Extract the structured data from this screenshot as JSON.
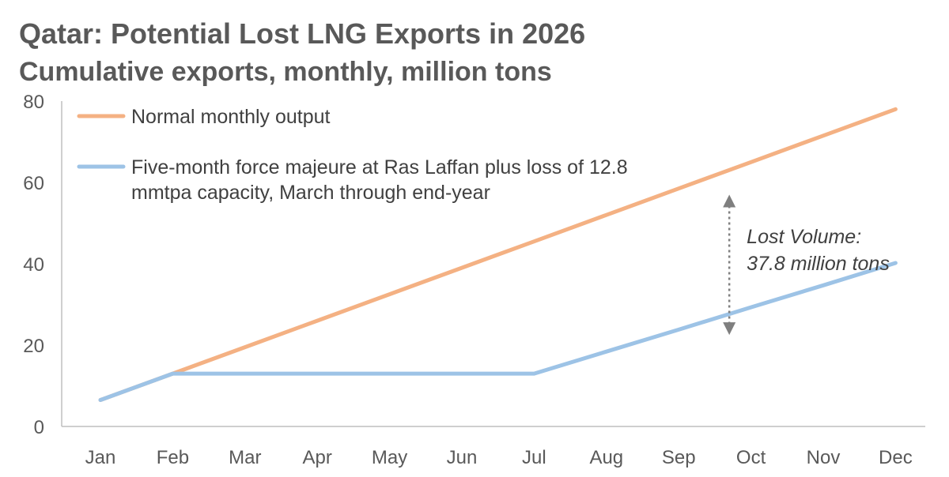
{
  "chart_data": {
    "type": "line",
    "title": "Qatar: Potential Lost LNG Exports in 2026",
    "subtitle": "Cumulative exports, monthly, million tons",
    "categories": [
      "Jan",
      "Feb",
      "Mar",
      "Apr",
      "May",
      "Jun",
      "Jul",
      "Aug",
      "Sep",
      "Oct",
      "Nov",
      "Dec"
    ],
    "ylim": [
      0,
      80
    ],
    "yticks": [
      "0",
      "20",
      "40",
      "60",
      "80"
    ],
    "grid": false,
    "legend_position": "top-left",
    "series": [
      {
        "name": "Normal monthly output",
        "name_lines": [
          "Normal monthly output"
        ],
        "color": "#F4B183",
        "values": [
          6.5,
          13.0,
          19.5,
          26.0,
          32.5,
          39.0,
          45.5,
          52.0,
          58.5,
          65.0,
          71.5,
          78.0
        ]
      },
      {
        "name": "Five-month force majeure at Ras Laffan plus loss of 12.8 mmtpa capacity, March through end-year",
        "name_lines": [
          "Five-month force majeure at Ras Laffan plus loss of 12.8",
          "mmtpa capacity, March through end-year"
        ],
        "color": "#9DC3E6",
        "values": [
          6.5,
          13.0,
          13.0,
          13.0,
          13.0,
          13.0,
          13.0,
          18.4,
          23.8,
          29.3,
          34.7,
          40.2
        ]
      }
    ],
    "annotation": {
      "lines": [
        "Lost Volume:",
        "37.8 million tons"
      ],
      "arrow_x_month": 8.7,
      "arrow_from": 22.5,
      "arrow_to": 57.0
    }
  }
}
